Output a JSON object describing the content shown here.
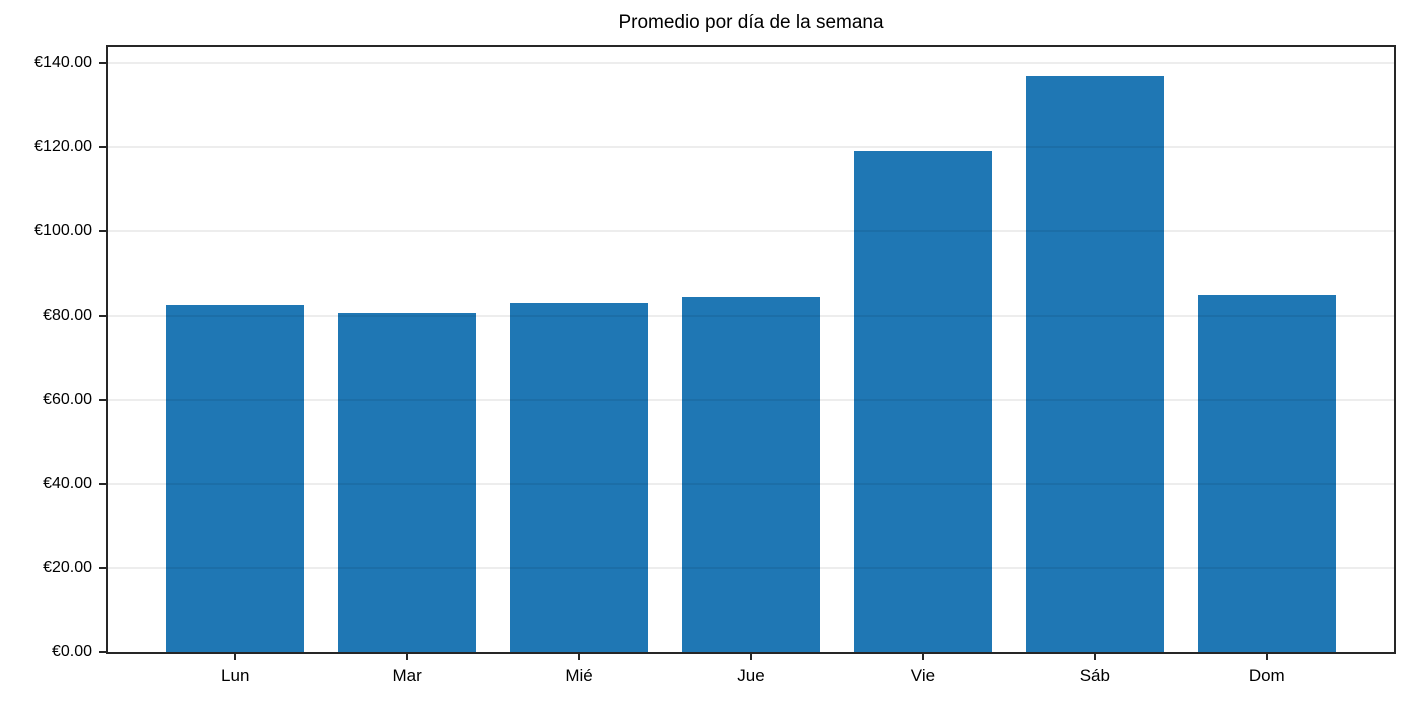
{
  "chart_data": {
    "type": "bar",
    "title": "Promedio por día de la semana",
    "categories": [
      "Lun",
      "Mar",
      "Mié",
      "Jue",
      "Vie",
      "Sáb",
      "Dom"
    ],
    "values": [
      82.6,
      80.6,
      82.9,
      84.3,
      119.2,
      137.0,
      85.0
    ],
    "y_ticks": [
      0,
      20,
      40,
      60,
      80,
      100,
      120,
      140
    ],
    "y_tick_labels": [
      "€0.00",
      "€20.00",
      "€40.00",
      "€60.00",
      "€80.00",
      "€100.00",
      "€120.00",
      "€140.00"
    ],
    "ylim": [
      0,
      143.85
    ],
    "xlabel": "",
    "ylabel": "",
    "currency": "EUR",
    "bar_color": "#1f77b4",
    "spine_color": "#262626",
    "grid": true,
    "grid_on_top_of_bars": true,
    "legend": "none"
  }
}
